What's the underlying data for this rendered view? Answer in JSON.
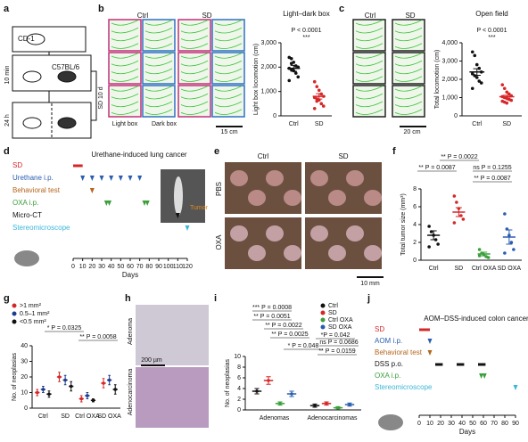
{
  "panel_letters": [
    "a",
    "b",
    "c",
    "d",
    "e",
    "f",
    "g",
    "h",
    "i",
    "j"
  ],
  "a": {
    "mouse1": "CD-1",
    "mouse2": "C57BL/6",
    "t1": "10 min",
    "t2": "24 h",
    "loop": "SD 10 d"
  },
  "b": {
    "col1": "Ctrl",
    "col2": "SD",
    "light": "Light box",
    "dark": "Dark box",
    "scale": "15 cm"
  },
  "c": {
    "col1": "Ctrl",
    "col2": "SD",
    "scale": "20 cm"
  },
  "d": {
    "title": "Urethane-induced lung cancer",
    "tumor": "Tumor",
    "xlabel": "Days",
    "xlim": [
      0,
      120
    ],
    "xticks": [
      0,
      10,
      20,
      30,
      40,
      50,
      60,
      70,
      80,
      90,
      100,
      110,
      120
    ],
    "rows": [
      {
        "name": "SD",
        "color": "#d62728",
        "kind": "bar",
        "days": [
          0,
          10
        ]
      },
      {
        "name": "Urethane i.p.",
        "color": "#2a5db0",
        "kind": "mark",
        "days": [
          10,
          20,
          30,
          40,
          50,
          60,
          70
        ]
      },
      {
        "name": "Behavioral test",
        "color": "#b5651d",
        "kind": "mark",
        "days": [
          20
        ]
      },
      {
        "name": "OXA i.p.",
        "color": "#3aa03a",
        "kind": "mark",
        "days": [
          35,
          38,
          75,
          78
        ]
      },
      {
        "name": "Micro-CT",
        "color": "#111111",
        "kind": "mark",
        "days": [
          110
        ]
      },
      {
        "name": "Stereomicroscope",
        "color": "#3cb6d8",
        "kind": "mark",
        "days": [
          120
        ]
      }
    ]
  },
  "e": {
    "col1": "Ctrl",
    "col2": "SD",
    "row1": "PBS",
    "row2": "OXA",
    "scale": "10 mm"
  },
  "h": {
    "row1": "Adenoma",
    "row2": "Adenocarcinoma",
    "scale": "200 µm"
  },
  "j": {
    "title": "AOM–DSS-induced colon cancer",
    "xlabel": "Days",
    "xlim": [
      0,
      90
    ],
    "xticks": [
      0,
      10,
      20,
      30,
      40,
      50,
      60,
      70,
      80,
      90
    ],
    "rows": [
      {
        "name": "SD",
        "color": "#d62728",
        "kind": "bar",
        "days": [
          0,
          10
        ]
      },
      {
        "name": "AOM i.p.",
        "color": "#2a5db0",
        "kind": "mark",
        "days": [
          10
        ]
      },
      {
        "name": "Behavioral test",
        "color": "#b5651d",
        "kind": "mark",
        "days": [
          10
        ]
      },
      {
        "name": "DSS p.o.",
        "color": "#111111",
        "kind": "bar",
        "days": [
          15,
          22,
          35,
          42,
          55,
          62
        ]
      },
      {
        "name": "OXA i.p.",
        "color": "#3aa03a",
        "kind": "mark",
        "days": [
          58,
          61
        ]
      },
      {
        "name": "Stereomicroscope",
        "color": "#3cb6d8",
        "kind": "mark",
        "days": [
          90
        ]
      }
    ]
  },
  "chart_data": [
    {
      "type": "dot",
      "title": "Light–dark box",
      "ylabel": "Light box locomotion (cm)",
      "annotations": [
        "P < 0.0001",
        "***"
      ],
      "categories": [
        "Ctrl",
        "SD"
      ],
      "colors": [
        "#111111",
        "#d62728"
      ],
      "values": [
        1950,
        800
      ],
      "errors": [
        120,
        110
      ],
      "points": [
        [
          2400,
          2350,
          2200,
          2050,
          2000,
          1950,
          1900,
          1850,
          1750,
          1600,
          1450,
          2150
        ],
        [
          1400,
          1200,
          1050,
          900,
          800,
          750,
          700,
          650,
          500,
          400,
          300,
          600
        ]
      ],
      "ylim": [
        0,
        3000
      ],
      "yticks": [
        0,
        {
          "value": 1000,
          "label": "1,000"
        },
        {
          "value": 2000,
          "label": "2,000"
        },
        {
          "value": 3000,
          "label": "3,000"
        }
      ]
    },
    {
      "type": "dot",
      "title": "Open field",
      "ylabel": "Total locomotion (cm)",
      "annotations": [
        "P < 0.0001",
        "***"
      ],
      "categories": [
        "Ctrl",
        "SD"
      ],
      "colors": [
        "#111111",
        "#d62728"
      ],
      "values": [
        2400,
        1050
      ],
      "errors": [
        180,
        80
      ],
      "points": [
        [
          3500,
          3300,
          2800,
          2600,
          2400,
          2300,
          2200,
          2100,
          1900,
          1800,
          1500
        ],
        [
          1700,
          1500,
          1300,
          1200,
          1100,
          1050,
          1000,
          950,
          900,
          850,
          800,
          750,
          700
        ]
      ],
      "ylim": [
        0,
        4000
      ],
      "yticks": [
        0,
        {
          "value": 1000,
          "label": "1,000"
        },
        {
          "value": 2000,
          "label": "2,000"
        },
        {
          "value": 3000,
          "label": "3,000"
        },
        {
          "value": 4000,
          "label": "4,000"
        }
      ]
    },
    {
      "type": "dot",
      "ylabel": "Total tumor size (mm³)",
      "annotations": [
        "** P = 0.0022",
        "** P = 0.0087",
        "ns P = 0.1255",
        "** P = 0.0087"
      ],
      "categories": [
        "Ctrl",
        "SD",
        "Ctrl OXA",
        "SD OXA"
      ],
      "colors": [
        "#111111",
        "#d62728",
        "#3aa03a",
        "#2a5db0"
      ],
      "values": [
        2.8,
        5.4,
        0.7,
        2.6
      ],
      "errors": [
        0.5,
        0.5,
        0.2,
        0.8
      ],
      "points": [
        [
          3.8,
          3.2,
          2.8,
          2.3,
          1.8,
          1.5
        ],
        [
          7.2,
          6.5,
          5.8,
          5.0,
          4.6,
          4.2
        ],
        [
          1.2,
          0.8,
          0.6,
          0.4,
          0.3,
          0.5
        ],
        [
          5.2,
          3.5,
          2.8,
          2.0,
          1.2,
          0.8
        ]
      ],
      "ylim": [
        0,
        8
      ],
      "yticks": [
        0,
        2,
        4,
        6,
        8
      ]
    },
    {
      "type": "dot",
      "ylabel": "No. of neoplasias",
      "annotations": [
        "* P = 0.0325",
        "** P = 0.0058"
      ],
      "categories": [
        "Ctrl",
        "SD",
        "Ctrl OXA",
        "SD OXA"
      ],
      "series": [
        {
          "name": ">1 mm²",
          "color": "#d62728",
          "values": [
            10,
            20,
            6,
            16
          ],
          "errors": [
            2,
            3,
            2,
            3
          ]
        },
        {
          "name": "0.5–1 mm²",
          "color": "#1f3b8c",
          "values": [
            12,
            18,
            8,
            18
          ],
          "errors": [
            2,
            3,
            2,
            3
          ]
        },
        {
          "name": "<0.5 mm²",
          "color": "#111111",
          "values": [
            9,
            14,
            5,
            12
          ],
          "errors": [
            2,
            3,
            1,
            3
          ]
        }
      ],
      "ylim": [
        0,
        40
      ],
      "yticks": [
        0,
        10,
        20,
        30,
        40
      ]
    },
    {
      "type": "dot",
      "ylabel": "No. of neoplasias",
      "annotations": [
        "*** P = 0.0008",
        "** P = 0.0051",
        "** P = 0.0022",
        "** P = 0.0025",
        "* P = 0.048",
        "*P = 0.042",
        "ns P = 0.0686",
        "** P = 0.0159"
      ],
      "categories": [
        "Adenomas",
        "Adenocarcinomas"
      ],
      "series": [
        {
          "name": "Ctrl",
          "color": "#111111",
          "values": [
            3.5,
            0.8
          ],
          "errors": [
            0.5,
            0.3
          ]
        },
        {
          "name": "SD",
          "color": "#d62728",
          "values": [
            5.5,
            1.2
          ],
          "errors": [
            0.7,
            0.3
          ]
        },
        {
          "name": "Ctrl OXA",
          "color": "#3aa03a",
          "values": [
            1.2,
            0.4
          ],
          "errors": [
            0.3,
            0.2
          ]
        },
        {
          "name": "SD OXA",
          "color": "#2a5db0",
          "values": [
            3.0,
            1.0
          ],
          "errors": [
            0.5,
            0.3
          ]
        }
      ],
      "ylim": [
        0,
        10
      ],
      "yticks": [
        0,
        2,
        4,
        6,
        8,
        10
      ]
    }
  ]
}
